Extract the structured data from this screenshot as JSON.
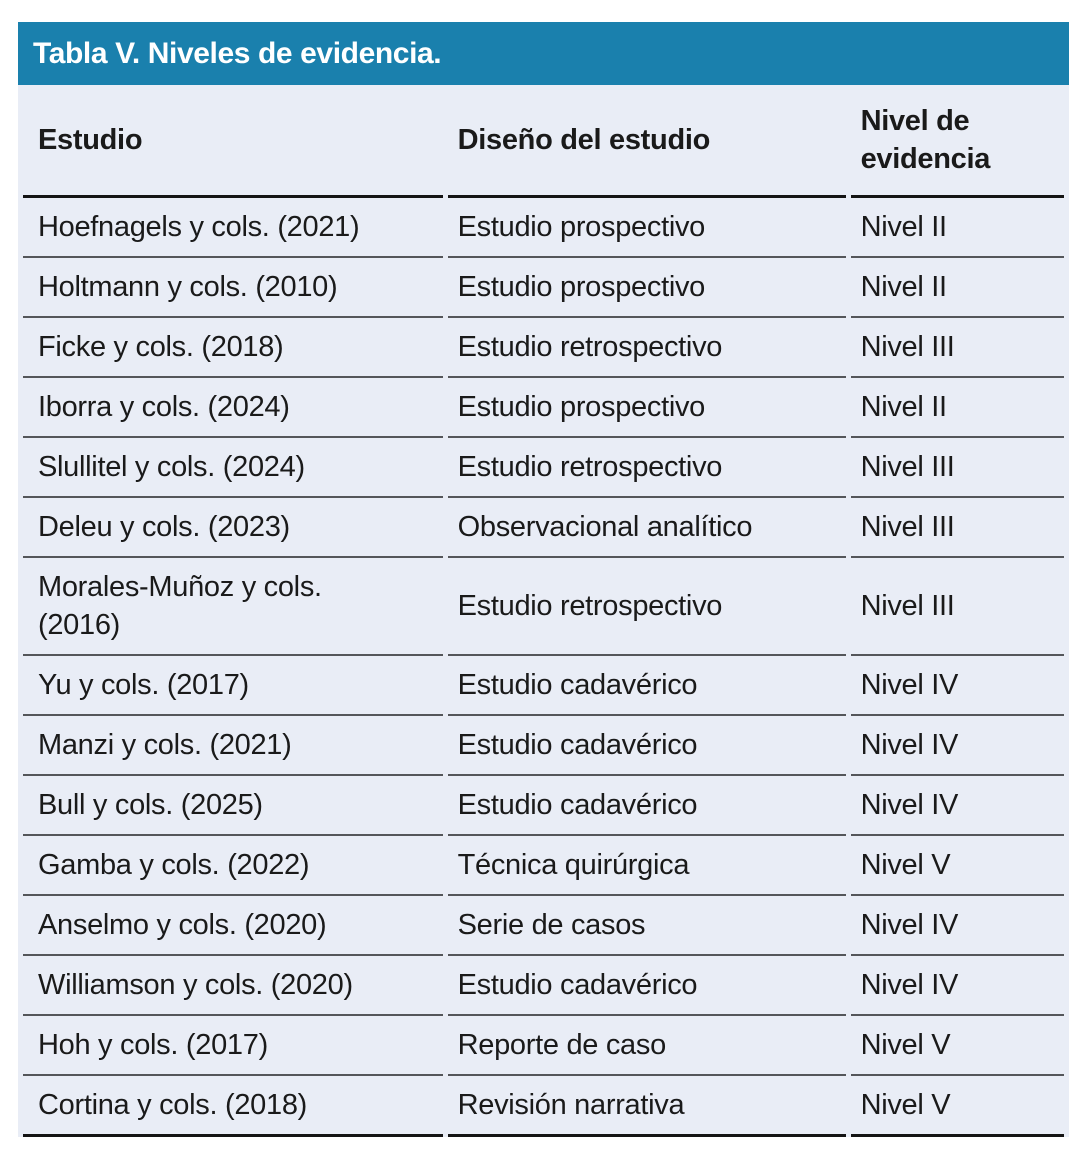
{
  "table": {
    "title": "Tabla V. Niveles de evidencia.",
    "columns": [
      "Estudio",
      "Diseño del estudio",
      "Nivel de\nevidencia"
    ],
    "rows": [
      [
        "Hoefnagels y cols. (2021)",
        "Estudio prospectivo",
        "Nivel II"
      ],
      [
        "Holtmann y cols. (2010)",
        "Estudio prospectivo",
        "Nivel II"
      ],
      [
        "Ficke y cols. (2018)",
        "Estudio retrospectivo",
        "Nivel III"
      ],
      [
        "Iborra y cols. (2024)",
        "Estudio prospectivo",
        "Nivel II"
      ],
      [
        "Slullitel y cols. (2024)",
        "Estudio retrospectivo",
        "Nivel III"
      ],
      [
        "Deleu y cols. (2023)",
        "Observacional analítico",
        "Nivel III"
      ],
      [
        "Morales-Muñoz y cols.\n(2016)",
        "Estudio retrospectivo",
        "Nivel III"
      ],
      [
        "Yu y cols. (2017)",
        "Estudio cadavérico",
        "Nivel IV"
      ],
      [
        "Manzi y cols. (2021)",
        "Estudio cadavérico",
        "Nivel IV"
      ],
      [
        "Bull y cols. (2025)",
        "Estudio cadavérico",
        "Nivel IV"
      ],
      [
        "Gamba y cols. (2022)",
        "Técnica quirúrgica",
        "Nivel V"
      ],
      [
        "Anselmo y cols. (2020)",
        "Serie de casos",
        "Nivel IV"
      ],
      [
        "Williamson y cols. (2020)",
        "Estudio cadavérico",
        "Nivel IV"
      ],
      [
        "Hoh y cols. (2017)",
        "Reporte de caso",
        "Nivel V"
      ],
      [
        "Cortina y cols. (2018)",
        "Revisión narrativa",
        "Nivel V"
      ]
    ],
    "colors": {
      "header_bar": "#1a80ad",
      "table_bg": "#e9edf6",
      "text": "#1a1a1a",
      "row_line": "#54565a",
      "strong_line": "#141414"
    }
  }
}
